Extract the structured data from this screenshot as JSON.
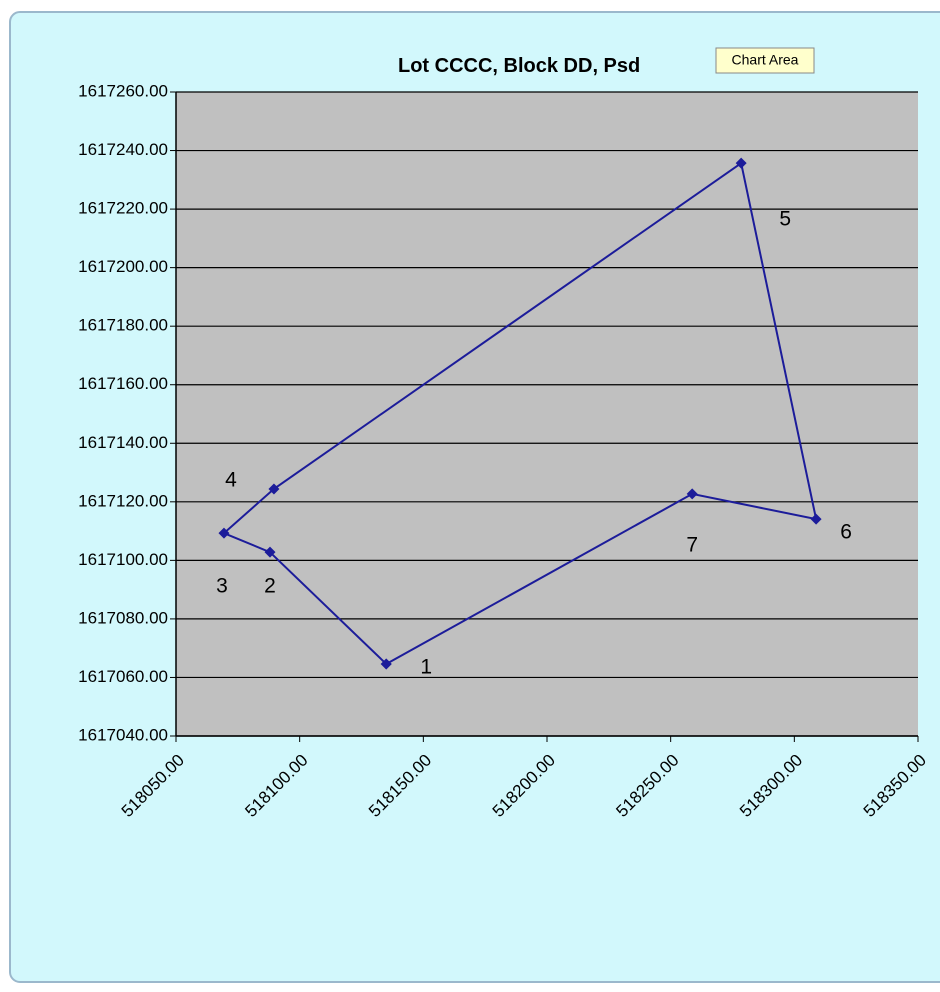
{
  "chart_data": {
    "type": "line",
    "title": "Lot CCCC, Block DD, Psd",
    "tooltip": "Chart Area",
    "x": [
      518135,
      518088,
      518069.4,
      518089.6,
      518278.5,
      518308.8,
      518258.7,
      518135
    ],
    "series": [
      {
        "name": "Lot CCCC",
        "color": "#1c1c9a",
        "values": [
          1617064.6,
          1617102.8,
          1617109.3,
          1617124.4,
          1617235.7,
          1617114.1,
          1617122.7,
          1617064.6
        ]
      }
    ],
    "point_labels": [
      "1",
      "2",
      "3",
      "4",
      "5",
      "6",
      "7"
    ],
    "xlim": [
      518050,
      518350
    ],
    "xticks": [
      {
        "value": 518050,
        "label": "518050.00"
      },
      {
        "value": 518100,
        "label": "518100.00"
      },
      {
        "value": 518150,
        "label": "518150.00"
      },
      {
        "value": 518200,
        "label": "518200.00"
      },
      {
        "value": 518250,
        "label": "518250.00"
      },
      {
        "value": 518300,
        "label": "518300.00"
      },
      {
        "value": 518350,
        "label": "518350.00"
      }
    ],
    "ylim": [
      1617040,
      1617260
    ],
    "yticks": [
      {
        "value": 1617040,
        "label": "1617040.00"
      },
      {
        "value": 1617060,
        "label": "1617060.00"
      },
      {
        "value": 1617080,
        "label": "1617080.00"
      },
      {
        "value": 1617100,
        "label": "1617100.00"
      },
      {
        "value": 1617120,
        "label": "1617120.00"
      },
      {
        "value": 1617140,
        "label": "1617140.00"
      },
      {
        "value": 1617160,
        "label": "1617160.00"
      },
      {
        "value": 1617180,
        "label": "1617180.00"
      },
      {
        "value": 1617200,
        "label": "1617200.00"
      },
      {
        "value": 1617220,
        "label": "1617220.00"
      },
      {
        "value": 1617240,
        "label": "1617240.00"
      },
      {
        "value": 1617260,
        "label": "1617260.00"
      }
    ],
    "grid": true
  }
}
